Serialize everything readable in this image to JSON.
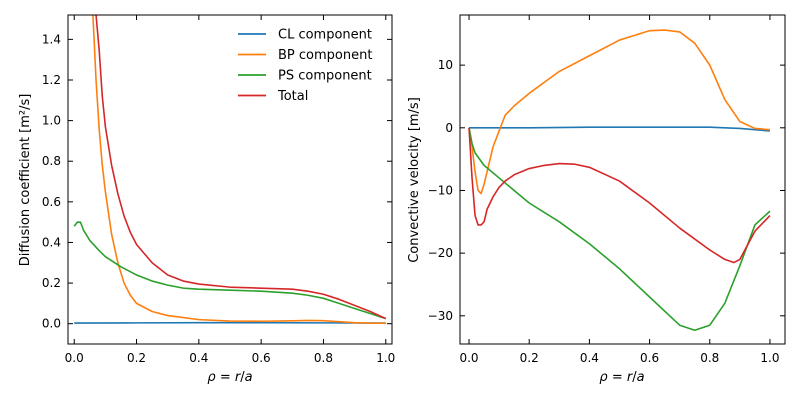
{
  "chart_data": [
    {
      "type": "line",
      "xlabel": "ρ = r/a",
      "ylabel": "Diffusion coefficient [m²/s]",
      "xlim": [
        -0.02,
        1.02
      ],
      "ylim": [
        -0.1,
        1.52
      ],
      "xticks": [
        "0.0",
        "0.2",
        "0.4",
        "0.6",
        "0.8",
        "1.0"
      ],
      "yticks": [
        "0.0",
        "0.2",
        "0.4",
        "0.6",
        "0.8",
        "1.0",
        "1.2",
        "1.4"
      ],
      "legend_position": "top-right",
      "series": [
        {
          "name": "CL component",
          "color": "#1f77b4",
          "x": [
            0,
            0.2,
            0.4,
            0.6,
            0.8,
            1.0
          ],
          "y": [
            0.003,
            0.004,
            0.005,
            0.005,
            0.004,
            0.003
          ]
        },
        {
          "name": "BP component",
          "color": "#ff7f0e",
          "x": [
            0.06,
            0.07,
            0.08,
            0.09,
            0.1,
            0.12,
            0.14,
            0.16,
            0.18,
            0.2,
            0.25,
            0.3,
            0.35,
            0.4,
            0.5,
            0.6,
            0.7,
            0.75,
            0.8,
            0.85,
            0.9,
            0.95,
            1.0
          ],
          "y": [
            1.52,
            1.2,
            0.96,
            0.78,
            0.65,
            0.44,
            0.3,
            0.2,
            0.14,
            0.1,
            0.06,
            0.04,
            0.03,
            0.02,
            0.013,
            0.012,
            0.014,
            0.016,
            0.015,
            0.01,
            0.005,
            0.003,
            0.002
          ]
        },
        {
          "name": "PS component",
          "color": "#2ca02c",
          "x": [
            0,
            0.01,
            0.02,
            0.03,
            0.05,
            0.08,
            0.1,
            0.15,
            0.2,
            0.25,
            0.3,
            0.35,
            0.4,
            0.5,
            0.6,
            0.7,
            0.75,
            0.8,
            0.85,
            0.9,
            0.95,
            1.0
          ],
          "y": [
            0.48,
            0.5,
            0.5,
            0.46,
            0.41,
            0.36,
            0.33,
            0.28,
            0.24,
            0.21,
            0.19,
            0.175,
            0.17,
            0.165,
            0.16,
            0.15,
            0.14,
            0.125,
            0.1,
            0.075,
            0.05,
            0.025
          ]
        },
        {
          "name": " Total",
          "color": "#d62728",
          "x": [
            0.07,
            0.08,
            0.09,
            0.1,
            0.12,
            0.14,
            0.16,
            0.18,
            0.2,
            0.25,
            0.3,
            0.35,
            0.4,
            0.5,
            0.6,
            0.7,
            0.75,
            0.8,
            0.85,
            0.9,
            0.95,
            1.0
          ],
          "y": [
            1.52,
            1.35,
            1.12,
            0.97,
            0.78,
            0.64,
            0.53,
            0.45,
            0.39,
            0.3,
            0.24,
            0.21,
            0.195,
            0.18,
            0.175,
            0.17,
            0.16,
            0.145,
            0.12,
            0.09,
            0.06,
            0.025
          ]
        }
      ]
    },
    {
      "type": "line",
      "xlabel": "ρ = r/a",
      "ylabel": "Convective velocity [m/s]",
      "xlim": [
        -0.03,
        1.05
      ],
      "ylim": [
        -34.5,
        18
      ],
      "xticks": [
        "0.0",
        "0.2",
        "0.4",
        "0.6",
        "0.8",
        "1.0"
      ],
      "yticks": [
        "10",
        "0",
        "−10",
        "−20",
        "−30"
      ],
      "series": [
        {
          "name": "CL component",
          "color": "#1f77b4",
          "x": [
            0,
            0.2,
            0.4,
            0.6,
            0.8,
            0.9,
            0.95,
            1.0
          ],
          "y": [
            0,
            0,
            0.1,
            0.1,
            0.1,
            -0.1,
            -0.3,
            -0.5
          ]
        },
        {
          "name": "BP component",
          "color": "#ff7f0e",
          "x": [
            0,
            0.01,
            0.02,
            0.03,
            0.04,
            0.05,
            0.06,
            0.08,
            0.1,
            0.12,
            0.15,
            0.2,
            0.3,
            0.4,
            0.5,
            0.6,
            0.65,
            0.7,
            0.75,
            0.8,
            0.85,
            0.9,
            0.95,
            1.0
          ],
          "y": [
            0,
            -3,
            -7,
            -10,
            -10.5,
            -9,
            -7,
            -3,
            -0.5,
            2,
            3.5,
            5.5,
            9,
            11.5,
            14,
            15.5,
            15.6,
            15.3,
            13.5,
            10,
            4.5,
            1,
            -0.1,
            -0.3
          ]
        },
        {
          "name": "PS component",
          "color": "#2ca02c",
          "x": [
            0,
            0.01,
            0.02,
            0.05,
            0.1,
            0.15,
            0.2,
            0.3,
            0.4,
            0.5,
            0.6,
            0.7,
            0.75,
            0.8,
            0.85,
            0.9,
            0.95,
            1.0
          ],
          "y": [
            0,
            -2.5,
            -4,
            -6,
            -8,
            -10,
            -12,
            -15,
            -18.5,
            -22.5,
            -27,
            -31.5,
            -32.3,
            -31.5,
            -28,
            -22,
            -15.5,
            -13.3
          ]
        },
        {
          "name": " Total",
          "color": "#d62728",
          "x": [
            0,
            0.01,
            0.02,
            0.03,
            0.04,
            0.05,
            0.06,
            0.08,
            0.1,
            0.12,
            0.15,
            0.2,
            0.25,
            0.3,
            0.35,
            0.4,
            0.5,
            0.6,
            0.7,
            0.8,
            0.85,
            0.88,
            0.9,
            0.95,
            1.0
          ],
          "y": [
            0,
            -8,
            -14,
            -15.5,
            -15.5,
            -15,
            -13,
            -11,
            -9.5,
            -8.5,
            -7.5,
            -6.5,
            -6,
            -5.7,
            -5.8,
            -6.3,
            -8.5,
            -12,
            -16,
            -19.5,
            -21,
            -21.5,
            -21,
            -16.5,
            -14
          ]
        }
      ]
    }
  ]
}
